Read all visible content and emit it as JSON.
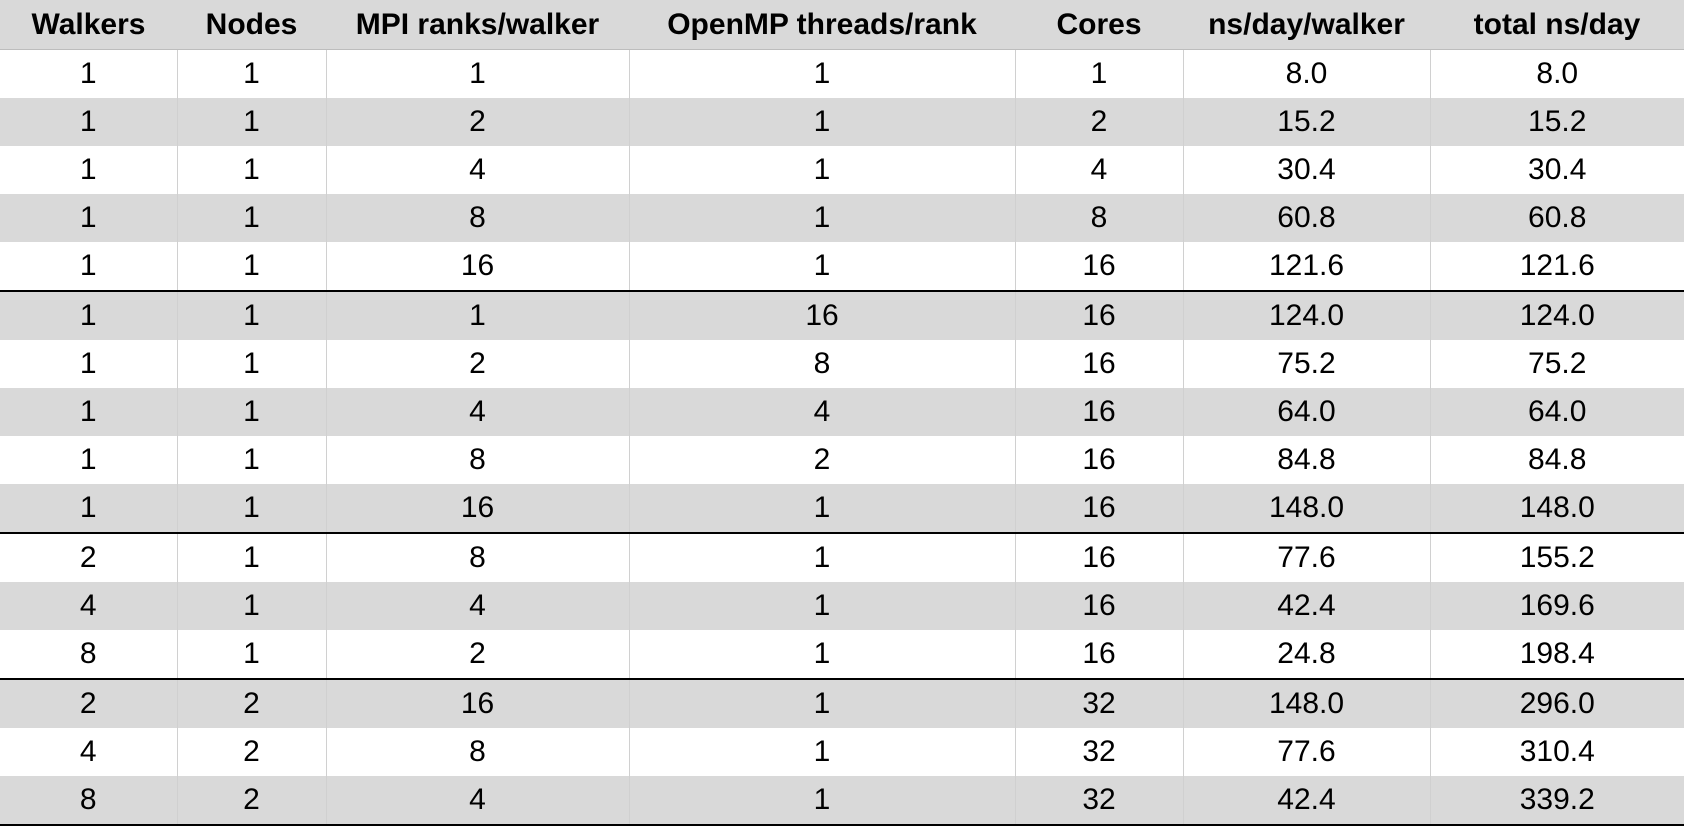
{
  "chart_data": {
    "type": "table",
    "columns": [
      "Walkers",
      "Nodes",
      "MPI ranks/walker",
      "OpenMP threads/rank",
      "Cores",
      "ns/day/walker",
      "total ns/day"
    ],
    "rows": [
      [
        "1",
        "1",
        "1",
        "1",
        "1",
        "8.0",
        "8.0"
      ],
      [
        "1",
        "1",
        "2",
        "1",
        "2",
        "15.2",
        "15.2"
      ],
      [
        "1",
        "1",
        "4",
        "1",
        "4",
        "30.4",
        "30.4"
      ],
      [
        "1",
        "1",
        "8",
        "1",
        "8",
        "60.8",
        "60.8"
      ],
      [
        "1",
        "1",
        "16",
        "1",
        "16",
        "121.6",
        "121.6"
      ],
      [
        "1",
        "1",
        "1",
        "16",
        "16",
        "124.0",
        "124.0"
      ],
      [
        "1",
        "1",
        "2",
        "8",
        "16",
        "75.2",
        "75.2"
      ],
      [
        "1",
        "1",
        "4",
        "4",
        "16",
        "64.0",
        "64.0"
      ],
      [
        "1",
        "1",
        "8",
        "2",
        "16",
        "84.8",
        "84.8"
      ],
      [
        "1",
        "1",
        "16",
        "1",
        "16",
        "148.0",
        "148.0"
      ],
      [
        "2",
        "1",
        "8",
        "1",
        "16",
        "77.6",
        "155.2"
      ],
      [
        "4",
        "1",
        "4",
        "1",
        "16",
        "42.4",
        "169.6"
      ],
      [
        "8",
        "1",
        "2",
        "1",
        "16",
        "24.8",
        "198.4"
      ],
      [
        "2",
        "2",
        "16",
        "1",
        "32",
        "148.0",
        "296.0"
      ],
      [
        "4",
        "2",
        "8",
        "1",
        "32",
        "77.6",
        "310.4"
      ],
      [
        "8",
        "2",
        "4",
        "1",
        "32",
        "42.4",
        "339.2"
      ]
    ],
    "group_separators_before_row": [
      5,
      10,
      13
    ],
    "colors": {
      "header_background": "#d9d9d9",
      "shaded_row": "#d9d9d9",
      "plain_row": "#ffffff",
      "separator": "#000000"
    }
  }
}
